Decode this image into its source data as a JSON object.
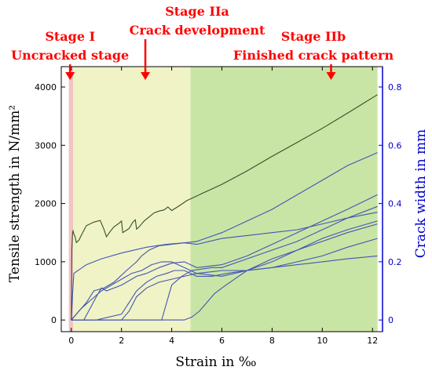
{
  "chart_data": {
    "type": "line",
    "xlabel": "Strain  in ‰",
    "ylabel": "Tensile strength in N/mm²",
    "y2label": "Crack width in mm",
    "xlim": [
      -0.4,
      12.4
    ],
    "ylim": [
      -200,
      4350
    ],
    "y2lim": [
      -0.04,
      0.87
    ],
    "x_ticks": [
      0,
      2,
      4,
      6,
      8,
      10,
      12
    ],
    "y_ticks": [
      0,
      1000,
      2000,
      3000,
      4000
    ],
    "y2_ticks": [
      0,
      0.2,
      0.4,
      0.6,
      0.8
    ],
    "x_tick_labels": [
      "0",
      "2",
      "4",
      "6",
      "8",
      "10",
      "12"
    ],
    "y_tick_labels": [
      "0",
      "1000",
      "2000",
      "3000",
      "4000"
    ],
    "y2_tick_labels": [
      "0",
      "0.2",
      "0.4",
      "0.6",
      "0.8"
    ],
    "colors": {
      "stage1": "#f2c4c4",
      "stage2a": "#f0f3c6",
      "stage2b": "#c9e5a5",
      "stress": "#35502a",
      "crack": "#4355b5",
      "annotation": "#ff0000",
      "right_axis": "#0000cc"
    },
    "stages": [
      {
        "name": "Stage I",
        "description": "Uncracked stage",
        "x_from": -0.1,
        "x_to": 0.07,
        "arrow_x": -0.05
      },
      {
        "name": "Stage IIa",
        "description": "Crack development",
        "x_from": 0.07,
        "x_to": 4.75,
        "arrow_x": 2.95
      },
      {
        "name": "Stage IIb",
        "description": "Finished crack pattern",
        "x_from": 4.75,
        "x_to": 12.2,
        "arrow_x": 10.35
      }
    ],
    "stress_series": {
      "axis": "left",
      "x": [
        0,
        0.02,
        0.05,
        0.07,
        0.1,
        0.15,
        0.2,
        0.3,
        0.45,
        0.6,
        0.9,
        1.15,
        1.3,
        1.4,
        1.55,
        1.7,
        1.9,
        2.0,
        2.05,
        2.3,
        2.45,
        2.55,
        2.6,
        2.7,
        2.9,
        3.1,
        3.3,
        3.5,
        3.7,
        3.85,
        4.0,
        4.3,
        4.6,
        4.9,
        5.2,
        5.5,
        6.0,
        7.0,
        8.0,
        9.0,
        10.0,
        11.0,
        12.2
      ],
      "y": [
        0,
        1200,
        1500,
        1530,
        1480,
        1430,
        1330,
        1370,
        1500,
        1620,
        1680,
        1710,
        1560,
        1430,
        1520,
        1600,
        1660,
        1700,
        1500,
        1570,
        1680,
        1720,
        1560,
        1600,
        1700,
        1770,
        1840,
        1870,
        1890,
        1940,
        1880,
        1960,
        2050,
        2110,
        2170,
        2230,
        2330,
        2560,
        2810,
        3050,
        3290,
        3550,
        3870
      ]
    },
    "crack_series": [
      {
        "axis": "right",
        "x": [
          0,
          0.05,
          0.1,
          0.6,
          1.2,
          2.0,
          3.0,
          3.8,
          4.5,
          5.0,
          6.0,
          7.0,
          8.0,
          9.0,
          10.0,
          11.0,
          12.2
        ],
        "y": [
          0,
          0.09,
          0.16,
          0.19,
          0.21,
          0.23,
          0.25,
          0.26,
          0.265,
          0.27,
          0.3,
          0.34,
          0.38,
          0.43,
          0.48,
          0.53,
          0.575
        ]
      },
      {
        "axis": "right",
        "x": [
          0,
          0.5,
          1.0,
          1.2,
          1.4,
          2.0,
          2.6,
          3.0,
          3.5,
          4.0,
          4.5,
          5.0,
          6.0,
          7.0,
          8.0,
          9.0,
          10.0,
          11.0,
          12.2
        ],
        "y": [
          0,
          0,
          0.08,
          0.11,
          0.1,
          0.12,
          0.15,
          0.16,
          0.18,
          0.195,
          0.2,
          0.18,
          0.19,
          0.22,
          0.26,
          0.3,
          0.34,
          0.38,
          0.43
        ]
      },
      {
        "axis": "right",
        "x": [
          0,
          0.3,
          0.6,
          0.9,
          1.3,
          1.7,
          2.2,
          2.6,
          2.8,
          3.1,
          3.5,
          4.0,
          4.5,
          5.0,
          6.0,
          7.0,
          8.0,
          9.0,
          10.0,
          11.0,
          12.2
        ],
        "y": [
          0,
          0.03,
          0.06,
          0.1,
          0.11,
          0.13,
          0.17,
          0.2,
          0.22,
          0.24,
          0.255,
          0.26,
          0.265,
          0.26,
          0.28,
          0.29,
          0.3,
          0.31,
          0.33,
          0.35,
          0.37
        ]
      },
      {
        "axis": "right",
        "x": [
          0,
          0.4,
          0.8,
          1.2,
          1.6,
          2.0,
          2.4,
          2.8,
          3.2,
          3.6,
          4.0,
          4.5,
          5.0,
          6.0,
          7.0,
          8.0,
          9.0,
          10.0,
          11.0,
          12.2
        ],
        "y": [
          0,
          0.04,
          0.07,
          0.1,
          0.12,
          0.14,
          0.16,
          0.17,
          0.19,
          0.2,
          0.2,
          0.18,
          0.16,
          0.15,
          0.17,
          0.2,
          0.24,
          0.28,
          0.31,
          0.34
        ]
      },
      {
        "axis": "right",
        "x": [
          0,
          1.0,
          2.0,
          2.3,
          2.6,
          3.0,
          3.4,
          3.8,
          4.1,
          4.5,
          5.0,
          5.6,
          6.2,
          7.0,
          8.0,
          9.0,
          10.0,
          11.0,
          12.2
        ],
        "y": [
          0,
          0,
          0.02,
          0.06,
          0.1,
          0.13,
          0.15,
          0.16,
          0.17,
          0.17,
          0.15,
          0.15,
          0.16,
          0.17,
          0.18,
          0.2,
          0.22,
          0.25,
          0.28
        ]
      },
      {
        "axis": "right",
        "x": [
          0,
          2.0,
          2.3,
          2.6,
          3.0,
          3.5,
          4.0,
          4.5,
          5.0,
          5.5,
          6.0,
          7.0,
          8.0,
          9.0,
          10.0,
          11.0,
          12.2
        ],
        "y": [
          0,
          0,
          0.03,
          0.08,
          0.11,
          0.13,
          0.14,
          0.15,
          0.16,
          0.165,
          0.17,
          0.17,
          0.18,
          0.19,
          0.2,
          0.21,
          0.22
        ]
      },
      {
        "axis": "right",
        "x": [
          0,
          3.6,
          3.8,
          4.0,
          4.4,
          4.8,
          5.2,
          5.6,
          6.0,
          7.0,
          8.0,
          9.0,
          10.0,
          11.0,
          12.2
        ],
        "y": [
          0,
          0,
          0.06,
          0.12,
          0.15,
          0.17,
          0.175,
          0.18,
          0.18,
          0.21,
          0.24,
          0.27,
          0.31,
          0.35,
          0.39
        ]
      },
      {
        "axis": "right",
        "x": [
          0,
          4.5,
          4.8,
          5.1,
          5.4,
          5.7,
          6.0,
          6.5,
          7.0,
          8.0,
          9.0,
          10.0,
          11.0,
          12.2
        ],
        "y": [
          0,
          0,
          0.01,
          0.03,
          0.06,
          0.09,
          0.11,
          0.14,
          0.17,
          0.21,
          0.24,
          0.27,
          0.3,
          0.33
        ]
      }
    ]
  }
}
